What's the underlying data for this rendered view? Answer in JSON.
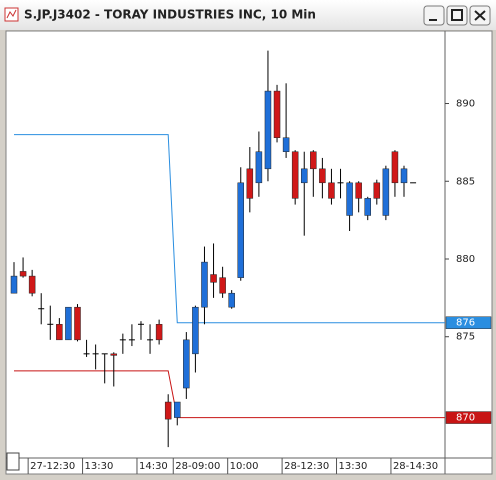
{
  "window_title": "S.JP.J3402 - TORAY INDUSTRIES INC, 10 Min",
  "chart_data": {
    "type": "candlestick",
    "categories": [
      null,
      null,
      "27-12:30",
      null,
      null,
      null,
      null,
      null,
      "13:30",
      null,
      null,
      null,
      null,
      null,
      "14:30",
      null,
      null,
      null,
      "28-09:00",
      null,
      null,
      null,
      null,
      null,
      "10:00",
      null,
      null,
      null,
      null,
      null,
      "28-12:30",
      null,
      null,
      null,
      null,
      null,
      "13:30",
      null,
      null,
      null,
      null,
      null,
      "28-14:30",
      null,
      null
    ],
    "open": [
      877.8,
      879.2,
      878.9,
      876.8,
      875.8,
      875.8,
      874.8,
      876.9,
      873.9,
      873.9,
      873.9,
      873.9,
      874.8,
      874.8,
      875.8,
      874.8,
      875.8,
      870.8,
      869.8,
      871.7,
      873.9,
      876.9,
      879.0,
      878.8,
      876.9,
      878.8,
      885.8,
      884.9,
      885.8,
      890.8,
      886.9,
      886.9,
      884.9,
      886.9,
      885.8,
      884.9,
      884.9,
      882.8,
      884.9,
      882.8,
      884.9,
      882.8,
      886.9,
      884.9,
      884.9
    ],
    "high": [
      879.8,
      880.1,
      879.3,
      877.8,
      877.0,
      876.2,
      876.9,
      877.1,
      874.8,
      874.5,
      873.9,
      874.0,
      875.2,
      875.8,
      876.0,
      875.8,
      876.1,
      871.3,
      870.7,
      875.3,
      877.0,
      880.8,
      881.0,
      879.5,
      878.0,
      885.9,
      887.2,
      888.2,
      893.4,
      891.2,
      891.3,
      887.0,
      886.9,
      887.0,
      886.5,
      885.8,
      885.8,
      885.0,
      885.0,
      884.0,
      885.1,
      886.0,
      887.0,
      886.0,
      884.9
    ],
    "low": [
      877.8,
      878.8,
      877.6,
      875.8,
      874.8,
      874.8,
      874.8,
      874.7,
      873.7,
      872.9,
      872.0,
      871.8,
      873.9,
      874.4,
      874.8,
      873.9,
      874.5,
      867.9,
      869.3,
      871.0,
      872.7,
      875.8,
      877.5,
      877.5,
      876.8,
      878.6,
      883.0,
      884.0,
      885.0,
      887.5,
      886.5,
      883.5,
      881.5,
      884.0,
      883.9,
      883.5,
      883.9,
      881.8,
      883.0,
      882.5,
      883.5,
      882.5,
      884.0,
      884.0,
      884.9
    ],
    "close": [
      878.9,
      878.9,
      877.8,
      876.8,
      875.8,
      874.8,
      876.9,
      874.8,
      873.9,
      873.9,
      873.9,
      873.8,
      874.8,
      874.8,
      875.8,
      874.8,
      874.8,
      869.7,
      870.8,
      874.8,
      876.9,
      879.8,
      878.5,
      877.8,
      877.8,
      884.9,
      883.9,
      886.9,
      890.8,
      887.8,
      887.8,
      883.9,
      885.8,
      885.8,
      884.9,
      883.9,
      884.9,
      884.9,
      883.9,
      883.9,
      883.9,
      885.8,
      884.9,
      885.8,
      884.9
    ],
    "up_color": "#1f6fd8",
    "down_color": "#d01818",
    "series": [
      {
        "color": "#2a8ee0",
        "values": [
          888.0,
          888.0,
          888.0,
          888.0,
          888.0,
          888.0,
          888.0,
          888.0,
          888.0,
          888.0,
          888.0,
          888.0,
          888.0,
          888.0,
          888.0,
          888.0,
          888.0,
          888.0,
          875.9,
          875.9,
          875.9,
          875.9,
          875.9,
          875.9,
          875.9,
          875.9,
          875.9,
          875.9,
          875.9,
          875.9,
          875.9,
          875.9,
          875.9,
          875.9,
          875.9,
          875.9,
          875.9,
          875.9,
          875.9,
          875.9,
          875.9,
          875.9,
          875.9,
          875.9,
          875.9
        ],
        "marker": {
          "value": 875.9,
          "label": "876"
        }
      },
      {
        "color": "#c81414",
        "values": [
          872.8,
          872.8,
          872.8,
          872.8,
          872.8,
          872.8,
          872.8,
          872.8,
          872.8,
          872.8,
          872.8,
          872.8,
          872.8,
          872.8,
          872.8,
          872.8,
          872.8,
          872.8,
          869.8,
          869.8,
          869.8,
          869.8,
          869.8,
          869.8,
          869.8,
          869.8,
          869.8,
          869.8,
          869.8,
          869.8,
          869.8,
          869.8,
          869.8,
          869.8,
          869.8,
          869.8,
          869.8,
          869.8,
          869.8,
          869.8,
          869.8,
          869.8,
          869.8,
          869.8,
          869.8
        ],
        "marker": {
          "value": 869.8,
          "label": "870"
        }
      }
    ],
    "ylim": [
      867.2,
      894.6
    ],
    "yticks": [
      875,
      880,
      885,
      890
    ],
    "grid": false
  }
}
